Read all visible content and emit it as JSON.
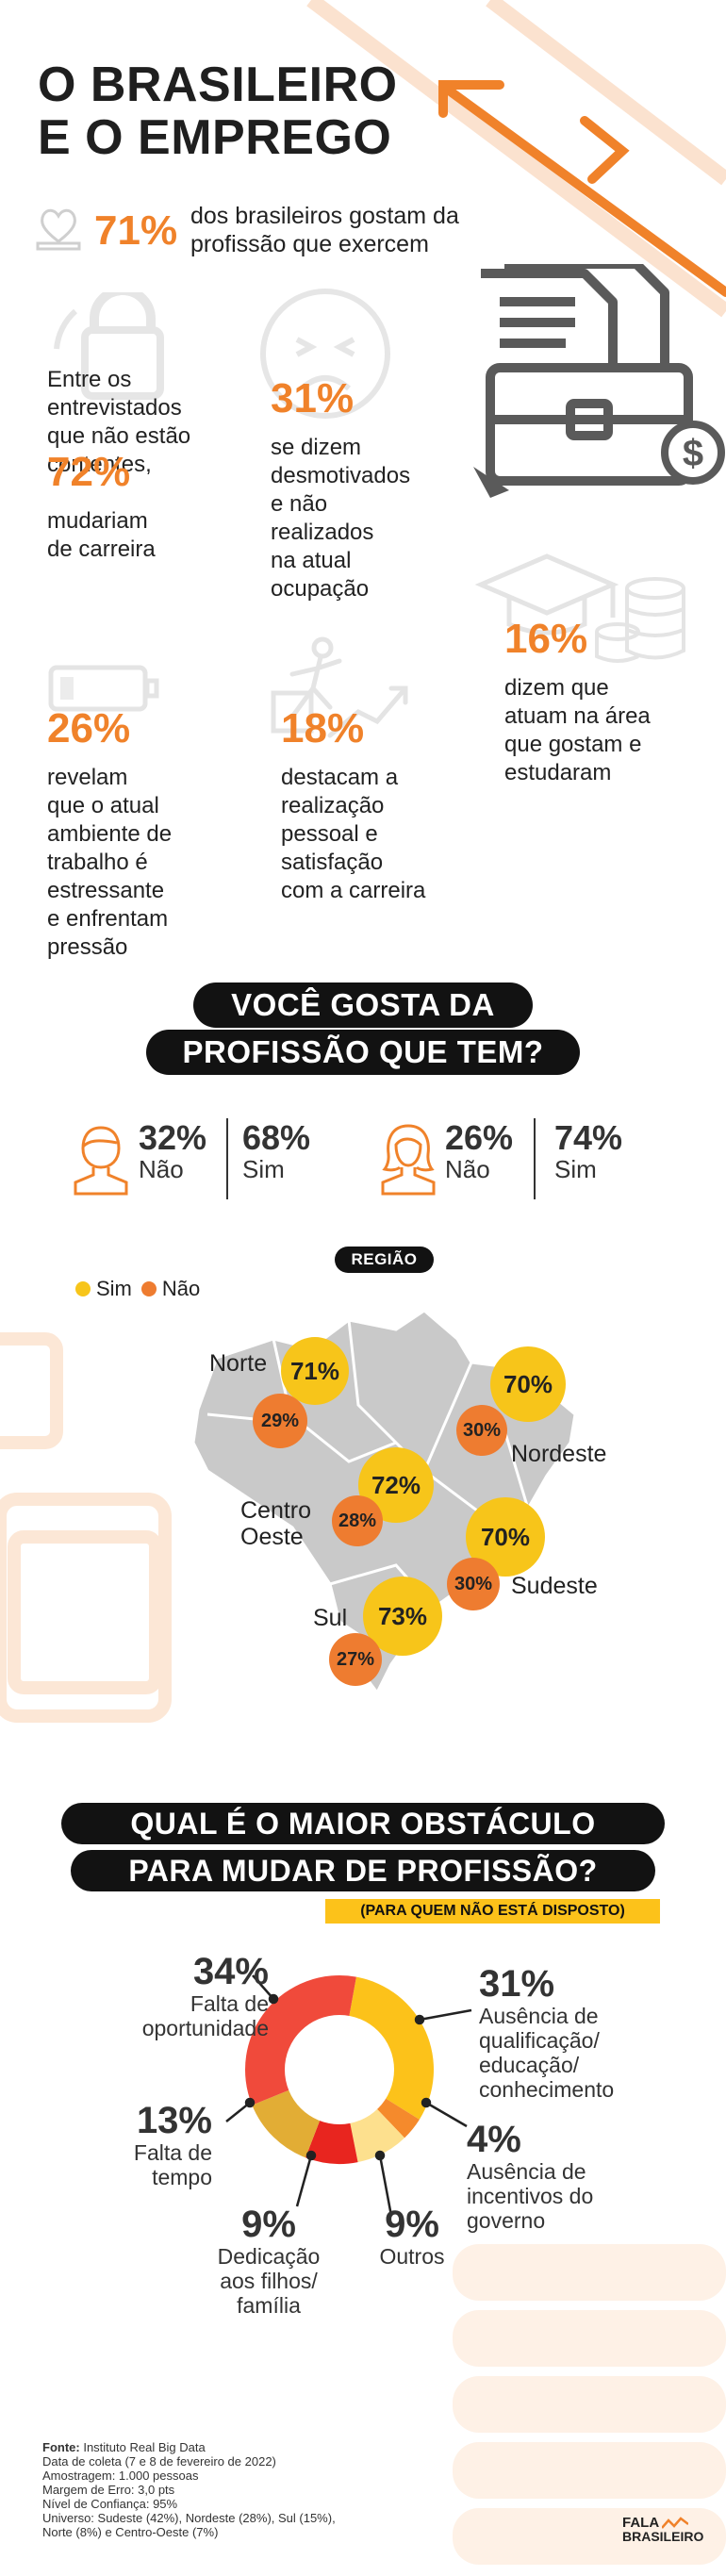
{
  "header": {
    "title_line1": "O BRASILEIRO",
    "title_line2": "E O EMPREGO"
  },
  "intro": {
    "pct": "71%",
    "text_line1": "dos brasileiros gostam da",
    "text_line2": "profissão que exercem"
  },
  "stats": {
    "unhappy": {
      "pre_line1": "Entre os",
      "pre_line2": "entrevistados",
      "pre_line3": "que não estão",
      "pre_line4": "contentes,",
      "pct": "72%",
      "line1": "mudariam",
      "line2": "de carreira"
    },
    "demotivated": {
      "pct": "31%",
      "line1": "se dizem",
      "line2": "desmotivados",
      "line3": "e não",
      "line4": "realizados",
      "line5": "na atual",
      "line6": "ocupação"
    },
    "studied": {
      "pct": "16%",
      "line1": "dizem que",
      "line2": "atuam na área",
      "line3": "que gostam e",
      "line4": "estudaram"
    },
    "stress": {
      "pct": "26%",
      "line1": "revelam",
      "line2": "que o atual",
      "line3": "ambiente de",
      "line4": "trabalho é",
      "line5": "estressante",
      "line6": "e enfrentam",
      "line7": "pressão"
    },
    "fulfilled": {
      "pct": "18%",
      "line1": "destacam a",
      "line2": "realização",
      "line3": "pessoal e",
      "line4": "satisfação",
      "line5": "com a carreira"
    }
  },
  "question1": {
    "line1": "VOCÊ GOSTA DA",
    "line2": "PROFISSÃO QUE TEM?"
  },
  "gender": {
    "male": {
      "no_pct": "32%",
      "no_label": "Não",
      "yes_pct": "68%",
      "yes_label": "Sim"
    },
    "female": {
      "no_pct": "26%",
      "no_label": "Não",
      "yes_pct": "74%",
      "yes_label": "Sim"
    }
  },
  "region": {
    "title": "REGIÃO",
    "legend_yes": "Sim",
    "legend_no": "Não",
    "colors": {
      "yes": "#f7c51a",
      "no": "#ee7c30",
      "map": "#c9c9c9"
    },
    "norte": {
      "label": "Norte",
      "yes": "71%",
      "no": "29%"
    },
    "nordeste": {
      "label": "Nordeste",
      "yes": "70%",
      "no": "30%"
    },
    "centro": {
      "label_line1": "Centro",
      "label_line2": "Oeste",
      "yes": "72%",
      "no": "28%"
    },
    "sudeste": {
      "label": "Sudeste",
      "yes": "70%",
      "no": "30%"
    },
    "sul": {
      "label": "Sul",
      "yes": "73%",
      "no": "27%"
    }
  },
  "question2": {
    "line1": "QUAL É O MAIOR OBSTÁCULO",
    "line2": "PARA MUDAR DE PROFISSÃO?",
    "note": "(PARA QUEM NÃO ESTÁ DISPOSTO)"
  },
  "chart_data": {
    "type": "pie",
    "donut": true,
    "slices": [
      {
        "label": "Ausência de qualificação/ educação/ conhecimento",
        "value": 31,
        "color": "#fcc21a"
      },
      {
        "label": "Ausência de incentivos do governo",
        "value": 4,
        "color": "#f58a2c"
      },
      {
        "label": "Outros",
        "value": 9,
        "color": "#fde08e"
      },
      {
        "label": "Dedicação aos filhos/ família",
        "value": 9,
        "color": "#e8251f"
      },
      {
        "label": "Falta de tempo",
        "value": 13,
        "color": "#e2ad35"
      },
      {
        "label": "Falta de oportunidade",
        "value": 34,
        "color": "#f04a3b"
      }
    ]
  },
  "donut_labels": {
    "oportunidade": {
      "pct": "34%",
      "line1": "Falta de",
      "line2": "oportunidade"
    },
    "qualificacao": {
      "pct": "31%",
      "line1": "Ausência de",
      "line2": "qualificação/",
      "line3": "educação/",
      "line4": "conhecimento"
    },
    "tempo": {
      "pct": "13%",
      "line1": "Falta de",
      "line2": "tempo"
    },
    "incentivos": {
      "pct": "4%",
      "line1": "Ausência de",
      "line2": "incentivos do",
      "line3": "governo"
    },
    "filhos": {
      "pct": "9%",
      "line1": "Dedicação",
      "line2": "aos filhos/",
      "line3": "família"
    },
    "outros": {
      "pct": "9%",
      "line1": "Outros"
    }
  },
  "source": {
    "label": "Fonte:",
    "name": "Instituto Real Big Data",
    "line1": "Data de coleta (7 e 8 de fevereiro de 2022)",
    "line2": "Amostragem: 1.000 pessoas",
    "line3": "Margem de Erro: 3,0 pts",
    "line4": "Nível de Confiança: 95%",
    "line5": "Universo: Sudeste (42%), Nordeste (28%), Sul (15%),",
    "line6": "Norte (8%) e Centro-Oeste (7%)"
  },
  "brand": {
    "line1": "FALA",
    "line2": "BRASILEIRO"
  }
}
